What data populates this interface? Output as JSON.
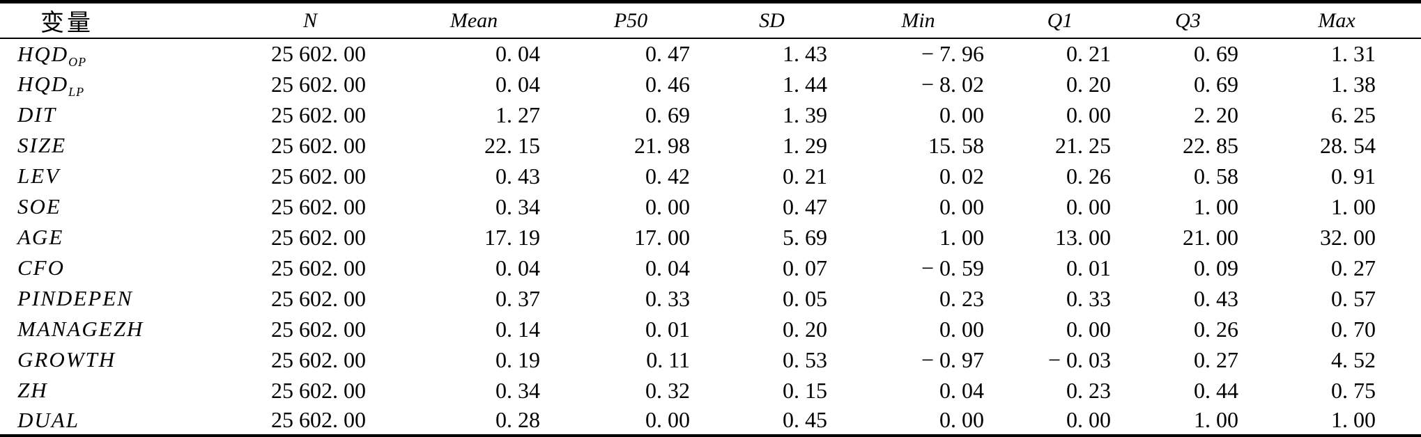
{
  "colors": {
    "background": "#ffffff",
    "text": "#000000",
    "border": "#000000"
  },
  "table": {
    "kind": "descriptive-statistics",
    "columns": [
      {
        "key": "variable",
        "label": "变量"
      },
      {
        "key": "n",
        "label": "N"
      },
      {
        "key": "mean",
        "label": "Mean"
      },
      {
        "key": "p50",
        "label": "P50"
      },
      {
        "key": "sd",
        "label": "SD"
      },
      {
        "key": "min",
        "label": "Min"
      },
      {
        "key": "q1",
        "label": "Q1"
      },
      {
        "key": "q3",
        "label": "Q3"
      },
      {
        "key": "max",
        "label": "Max"
      }
    ],
    "rows": [
      {
        "label": {
          "base": "HQD",
          "sub": "OP"
        },
        "values": [
          "25 602. 00",
          "0. 04",
          "0. 47",
          "1. 43",
          "− 7. 96",
          "0. 21",
          "0. 69",
          "1. 31"
        ]
      },
      {
        "label": {
          "base": "HQD",
          "sub": "LP"
        },
        "values": [
          "25 602. 00",
          "0. 04",
          "0. 46",
          "1. 44",
          "− 8. 02",
          "0. 20",
          "0. 69",
          "1. 38"
        ]
      },
      {
        "label": {
          "base": "DIT",
          "sub": ""
        },
        "values": [
          "25 602. 00",
          "1. 27",
          "0. 69",
          "1. 39",
          "0. 00",
          "0. 00",
          "2. 20",
          "6. 25"
        ]
      },
      {
        "label": {
          "base": "SIZE",
          "sub": ""
        },
        "values": [
          "25 602. 00",
          "22. 15",
          "21. 98",
          "1. 29",
          "15. 58",
          "21. 25",
          "22. 85",
          "28. 54"
        ]
      },
      {
        "label": {
          "base": "LEV",
          "sub": ""
        },
        "values": [
          "25 602. 00",
          "0. 43",
          "0. 42",
          "0. 21",
          "0. 02",
          "0. 26",
          "0. 58",
          "0. 91"
        ]
      },
      {
        "label": {
          "base": "SOE",
          "sub": ""
        },
        "values": [
          "25 602. 00",
          "0. 34",
          "0. 00",
          "0. 47",
          "0. 00",
          "0. 00",
          "1. 00",
          "1. 00"
        ]
      },
      {
        "label": {
          "base": "AGE",
          "sub": ""
        },
        "values": [
          "25 602. 00",
          "17. 19",
          "17. 00",
          "5. 69",
          "1. 00",
          "13. 00",
          "21. 00",
          "32. 00"
        ]
      },
      {
        "label": {
          "base": "CFO",
          "sub": ""
        },
        "values": [
          "25 602. 00",
          "0. 04",
          "0. 04",
          "0. 07",
          "− 0. 59",
          "0. 01",
          "0. 09",
          "0. 27"
        ]
      },
      {
        "label": {
          "base": "PINDEPEN",
          "sub": ""
        },
        "values": [
          "25 602. 00",
          "0. 37",
          "0. 33",
          "0. 05",
          "0. 23",
          "0. 33",
          "0. 43",
          "0. 57"
        ]
      },
      {
        "label": {
          "base": "MANAGEZH",
          "sub": ""
        },
        "values": [
          "25 602. 00",
          "0. 14",
          "0. 01",
          "0. 20",
          "0. 00",
          "0. 00",
          "0. 26",
          "0. 70"
        ]
      },
      {
        "label": {
          "base": "GROWTH",
          "sub": ""
        },
        "values": [
          "25 602. 00",
          "0. 19",
          "0. 11",
          "0. 53",
          "− 0. 97",
          "− 0. 03",
          "0. 27",
          "4. 52"
        ]
      },
      {
        "label": {
          "base": "ZH",
          "sub": ""
        },
        "values": [
          "25 602. 00",
          "0. 34",
          "0. 32",
          "0. 15",
          "0. 04",
          "0. 23",
          "0. 44",
          "0. 75"
        ]
      },
      {
        "label": {
          "base": "DUAL",
          "sub": ""
        },
        "values": [
          "25 602. 00",
          "0. 28",
          "0. 00",
          "0. 45",
          "0. 00",
          "0. 00",
          "1. 00",
          "1. 00"
        ]
      }
    ]
  }
}
